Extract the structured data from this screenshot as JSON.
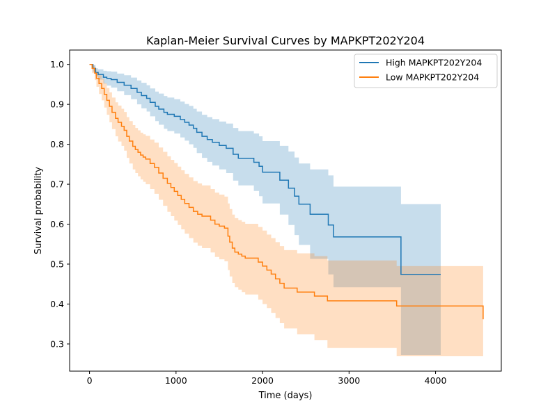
{
  "chart_data": {
    "type": "line",
    "title": "Kaplan-Meier Survival Curves by MAPKPT202Y204",
    "xlabel": "Time (days)",
    "ylabel": "Survival probability",
    "xlim": [
      -230,
      4760
    ],
    "ylim": [
      0.232,
      1.036
    ],
    "xticks": [
      0,
      1000,
      2000,
      3000,
      4000
    ],
    "yticks": [
      0.3,
      0.4,
      0.5,
      0.6,
      0.7,
      0.8,
      0.9,
      1.0
    ],
    "grid": false,
    "legend_position": "top-right",
    "series": [
      {
        "name": "High MAPKPT202Y204",
        "color": "#1f77b4",
        "band_color": "#1f77b4",
        "x": [
          0,
          40,
          70,
          100,
          160,
          200,
          250,
          320,
          400,
          480,
          550,
          600,
          660,
          700,
          760,
          800,
          860,
          900,
          980,
          1050,
          1100,
          1150,
          1200,
          1240,
          1300,
          1360,
          1420,
          1500,
          1580,
          1660,
          1720,
          1900,
          1960,
          2000,
          2200,
          2300,
          2370,
          2420,
          2550,
          2760,
          2820,
          3600,
          4060
        ],
        "y": [
          1.0,
          0.99,
          0.98,
          0.975,
          0.968,
          0.965,
          0.962,
          0.955,
          0.948,
          0.94,
          0.93,
          0.922,
          0.915,
          0.905,
          0.895,
          0.888,
          0.88,
          0.875,
          0.87,
          0.862,
          0.855,
          0.848,
          0.84,
          0.83,
          0.82,
          0.812,
          0.805,
          0.797,
          0.79,
          0.775,
          0.765,
          0.755,
          0.745,
          0.73,
          0.71,
          0.69,
          0.67,
          0.65,
          0.625,
          0.598,
          0.568,
          0.474,
          0.474
        ],
        "ci_lower": [
          1.0,
          0.982,
          0.97,
          0.962,
          0.952,
          0.947,
          0.942,
          0.933,
          0.923,
          0.913,
          0.9,
          0.89,
          0.882,
          0.87,
          0.858,
          0.849,
          0.839,
          0.833,
          0.827,
          0.817,
          0.809,
          0.8,
          0.791,
          0.778,
          0.766,
          0.756,
          0.747,
          0.737,
          0.728,
          0.709,
          0.697,
          0.683,
          0.67,
          0.652,
          0.624,
          0.598,
          0.573,
          0.548,
          0.513,
          0.474,
          0.442,
          0.272,
          0.272
        ],
        "ci_upper": [
          1.0,
          0.998,
          0.99,
          0.988,
          0.984,
          0.983,
          0.982,
          0.977,
          0.973,
          0.967,
          0.96,
          0.954,
          0.948,
          0.94,
          0.932,
          0.927,
          0.921,
          0.917,
          0.913,
          0.907,
          0.901,
          0.896,
          0.889,
          0.882,
          0.874,
          0.868,
          0.863,
          0.857,
          0.852,
          0.841,
          0.833,
          0.827,
          0.82,
          0.808,
          0.796,
          0.782,
          0.767,
          0.752,
          0.737,
          0.722,
          0.694,
          0.65,
          0.65
        ]
      },
      {
        "name": "Low MAPKPT202Y204",
        "color": "#ff7f0e",
        "band_color": "#ff7f0e",
        "x": [
          0,
          30,
          60,
          80,
          110,
          140,
          170,
          200,
          230,
          260,
          300,
          330,
          370,
          400,
          430,
          460,
          500,
          530,
          560,
          590,
          620,
          650,
          700,
          750,
          800,
          850,
          900,
          940,
          980,
          1020,
          1060,
          1100,
          1150,
          1200,
          1250,
          1300,
          1400,
          1450,
          1500,
          1560,
          1600,
          1620,
          1650,
          1680,
          1720,
          1760,
          1800,
          1950,
          2000,
          2050,
          2100,
          2150,
          2200,
          2250,
          2400,
          2600,
          2750,
          3550,
          4550
        ],
        "y": [
          1.0,
          0.99,
          0.978,
          0.965,
          0.952,
          0.94,
          0.925,
          0.91,
          0.895,
          0.88,
          0.865,
          0.855,
          0.845,
          0.835,
          0.82,
          0.808,
          0.795,
          0.787,
          0.78,
          0.773,
          0.768,
          0.763,
          0.752,
          0.742,
          0.728,
          0.715,
          0.702,
          0.692,
          0.682,
          0.672,
          0.662,
          0.652,
          0.642,
          0.632,
          0.625,
          0.62,
          0.61,
          0.6,
          0.595,
          0.59,
          0.57,
          0.555,
          0.54,
          0.53,
          0.525,
          0.52,
          0.515,
          0.505,
          0.495,
          0.485,
          0.475,
          0.463,
          0.452,
          0.44,
          0.43,
          0.42,
          0.408,
          0.395,
          0.362
        ],
        "ci_lower": [
          1.0,
          0.978,
          0.961,
          0.944,
          0.926,
          0.91,
          0.892,
          0.874,
          0.855,
          0.838,
          0.82,
          0.807,
          0.796,
          0.784,
          0.766,
          0.752,
          0.737,
          0.728,
          0.72,
          0.712,
          0.706,
          0.7,
          0.688,
          0.676,
          0.661,
          0.646,
          0.631,
          0.62,
          0.609,
          0.598,
          0.587,
          0.576,
          0.565,
          0.554,
          0.546,
          0.54,
          0.529,
          0.518,
          0.512,
          0.507,
          0.485,
          0.469,
          0.453,
          0.442,
          0.436,
          0.43,
          0.424,
          0.411,
          0.4,
          0.39,
          0.378,
          0.365,
          0.352,
          0.339,
          0.324,
          0.31,
          0.29,
          0.27,
          0.27
        ],
        "ci_upper": [
          1.0,
          0.997,
          0.99,
          0.981,
          0.973,
          0.964,
          0.953,
          0.941,
          0.93,
          0.917,
          0.905,
          0.897,
          0.889,
          0.881,
          0.868,
          0.858,
          0.848,
          0.841,
          0.835,
          0.829,
          0.825,
          0.821,
          0.812,
          0.804,
          0.792,
          0.781,
          0.77,
          0.761,
          0.753,
          0.744,
          0.735,
          0.726,
          0.717,
          0.708,
          0.702,
          0.697,
          0.688,
          0.679,
          0.674,
          0.669,
          0.652,
          0.638,
          0.624,
          0.615,
          0.61,
          0.606,
          0.601,
          0.593,
          0.584,
          0.574,
          0.565,
          0.555,
          0.545,
          0.535,
          0.527,
          0.52,
          0.509,
          0.495,
          0.458
        ]
      }
    ]
  }
}
